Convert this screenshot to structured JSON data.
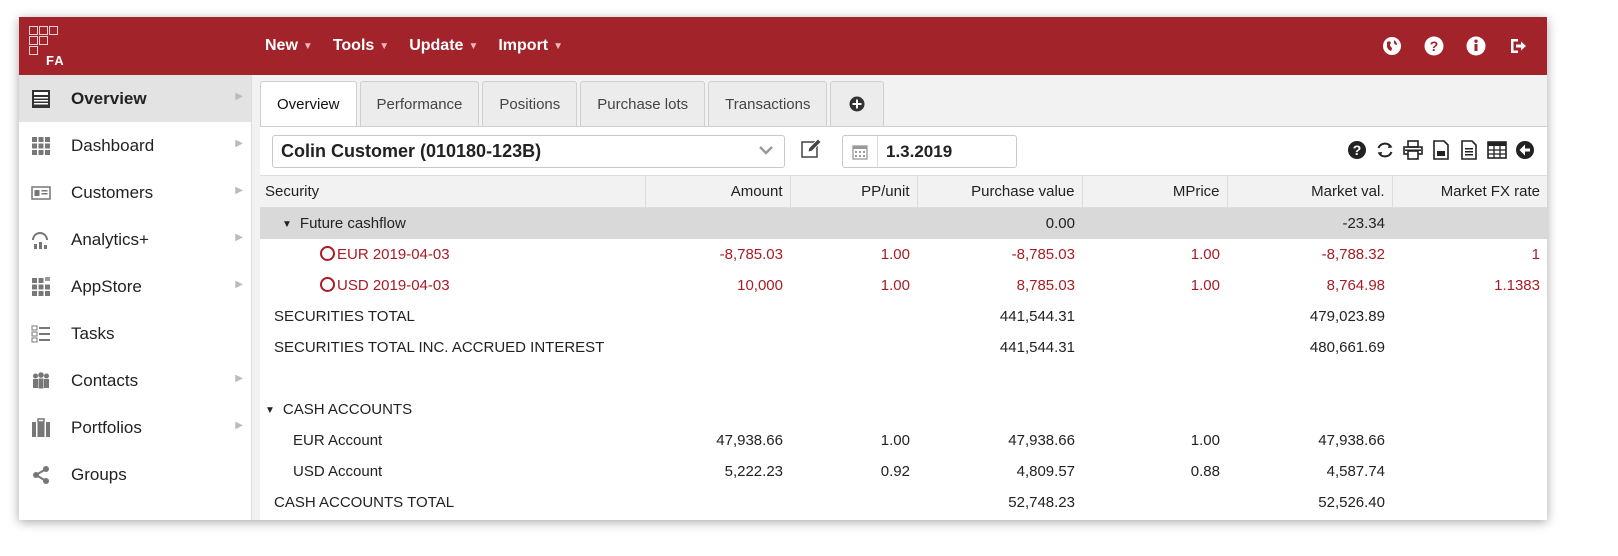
{
  "app": {
    "logo_text": "FA"
  },
  "topmenu": [
    {
      "label": "New"
    },
    {
      "label": "Tools"
    },
    {
      "label": "Update"
    },
    {
      "label": "Import"
    }
  ],
  "top_icons": [
    "globe-icon",
    "help-icon",
    "info-icon",
    "logout-icon"
  ],
  "sidebar": {
    "items": [
      {
        "label": "Overview",
        "icon": "overview-icon",
        "active": true
      },
      {
        "label": "Dashboard",
        "icon": "dashboard-grid-icon"
      },
      {
        "label": "Customers",
        "icon": "customer-card-icon"
      },
      {
        "label": "Analytics+",
        "icon": "analytics-icon"
      },
      {
        "label": "AppStore",
        "icon": "appstore-icon"
      },
      {
        "label": "Tasks",
        "icon": "tasks-list-icon"
      },
      {
        "label": "Contacts",
        "icon": "contacts-icon"
      },
      {
        "label": "Portfolios",
        "icon": "portfolio-briefcase-icon"
      },
      {
        "label": "Groups",
        "icon": "share-groups-icon"
      }
    ]
  },
  "tabs": [
    {
      "label": "Overview",
      "active": true
    },
    {
      "label": "Performance"
    },
    {
      "label": "Positions"
    },
    {
      "label": "Purchase lots"
    },
    {
      "label": "Transactions"
    }
  ],
  "controls": {
    "customer_select": "Colin Customer (010180-123B)",
    "date": "1.3.2019",
    "tool_icons": [
      "help-icon",
      "refresh-icon",
      "print-icon",
      "pdf-icon",
      "document-icon",
      "table-icon",
      "back-icon"
    ]
  },
  "table": {
    "columns": [
      "Security",
      "Amount",
      "PP/unit",
      "Purchase value",
      "MPrice",
      "Market val.",
      "Market FX rate"
    ],
    "rows": [
      {
        "kind": "group",
        "cells": [
          "Future cashflow",
          "",
          "",
          "0.00",
          "",
          "-23.34",
          ""
        ]
      },
      {
        "kind": "red",
        "cells": [
          "EUR 2019-04-03",
          "-8,785.03",
          "1.00",
          "-8,785.03",
          "1.00",
          "-8,788.32",
          "1"
        ]
      },
      {
        "kind": "red",
        "cells": [
          "USD 2019-04-03",
          "10,000",
          "1.00",
          "8,785.03",
          "1.00",
          "8,764.98",
          "1.1383"
        ]
      },
      {
        "kind": "total",
        "cells": [
          "SECURITIES TOTAL",
          "",
          "",
          "441,544.31",
          "",
          "479,023.89",
          ""
        ]
      },
      {
        "kind": "total",
        "cells": [
          "SECURITIES TOTAL INC. ACCRUED INTEREST",
          "",
          "",
          "441,544.31",
          "",
          "480,661.69",
          ""
        ]
      },
      {
        "kind": "blank",
        "cells": [
          "",
          "",
          "",
          "",
          "",
          "",
          ""
        ]
      },
      {
        "kind": "section",
        "cells": [
          "CASH ACCOUNTS",
          "",
          "",
          "",
          "",
          "",
          ""
        ]
      },
      {
        "kind": "item",
        "cells": [
          "EUR Account",
          "47,938.66",
          "1.00",
          "47,938.66",
          "1.00",
          "47,938.66",
          ""
        ]
      },
      {
        "kind": "item",
        "cells": [
          "USD Account",
          "5,222.23",
          "0.92",
          "4,809.57",
          "0.88",
          "4,587.74",
          ""
        ]
      },
      {
        "kind": "total",
        "cells": [
          "CASH ACCOUNTS TOTAL",
          "",
          "",
          "52,748.23",
          "",
          "52,526.40",
          ""
        ]
      }
    ]
  },
  "colors": {
    "brand": "#a2232a",
    "negative": "#a81c24"
  }
}
